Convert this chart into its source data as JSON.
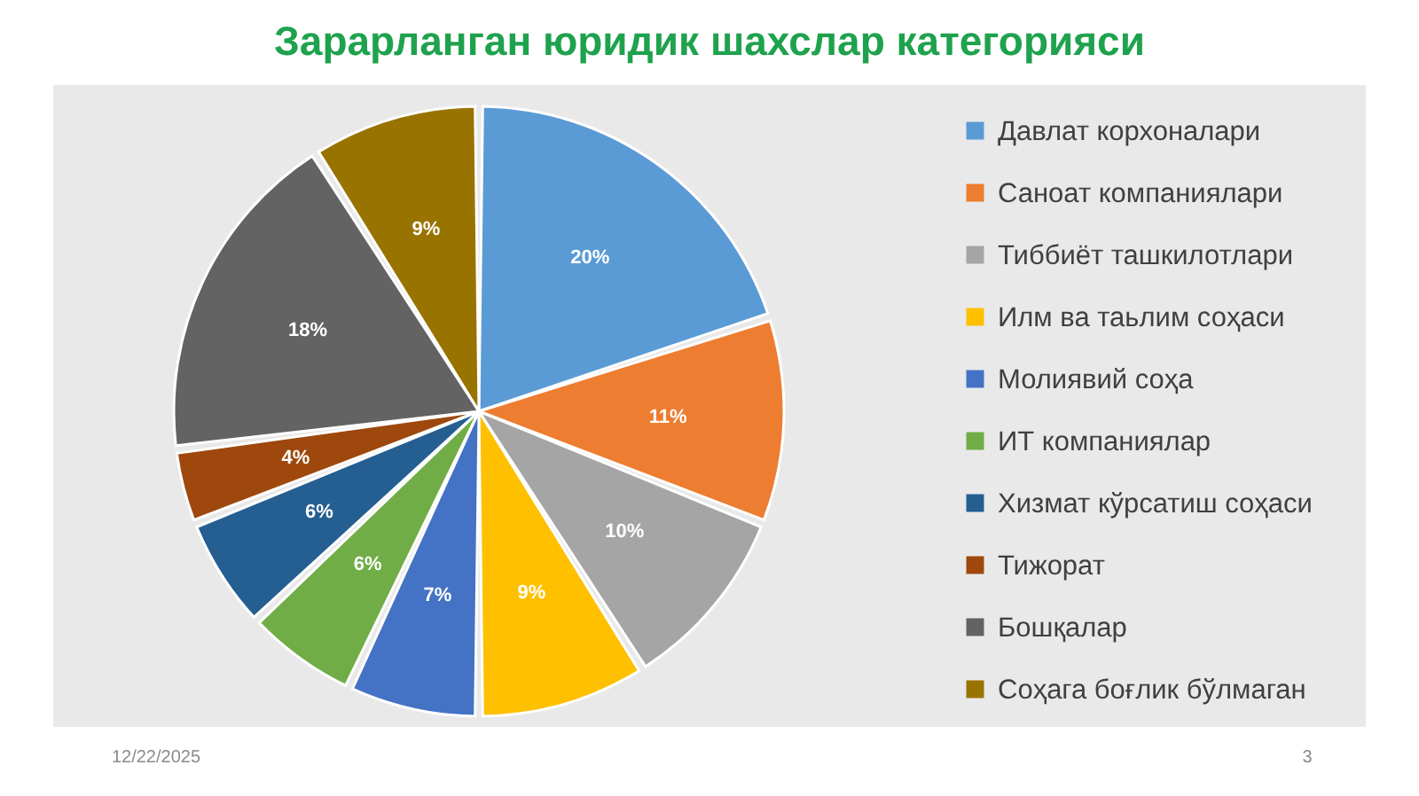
{
  "chart_data": {
    "type": "pie",
    "title": "Зарарланган юридик шахслар категорияси",
    "categories": [
      "Давлат корхоналари",
      "Саноат компаниялари",
      "Тиббиёт ташкилотлари",
      "Илм ва таьлим соҳаси",
      "Молиявий соҳа",
      "ИТ компаниялар",
      "Хизмат кўрсатиш соҳаси",
      "Тижорат",
      "Бошқалар",
      "Соҳага боғлик бўлмаган"
    ],
    "values": [
      20,
      11,
      10,
      9,
      7,
      6,
      6,
      4,
      18,
      9
    ],
    "colors": [
      "#5b9bd5",
      "#ed7d31",
      "#a5a5a5",
      "#ffc000",
      "#4472c4",
      "#70ad47",
      "#255e91",
      "#9e480e",
      "#636363",
      "#997300"
    ],
    "value_labels": [
      "20%",
      "11%",
      "10%",
      "9%",
      "7%",
      "6%",
      "6%",
      "4%",
      "18%",
      "9%"
    ],
    "legend": "right",
    "annotations": [
      "12/22/2025",
      "3"
    ]
  }
}
